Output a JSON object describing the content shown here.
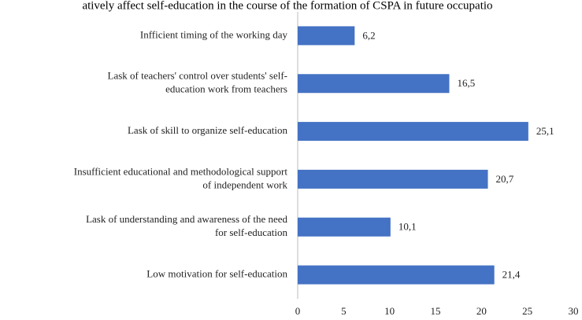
{
  "chart_data": {
    "type": "bar",
    "orientation": "horizontal",
    "title": "atively affect self-education in the course of the formation of CSPA in future occupatio",
    "categories": [
      [
        "Infficient timing of the working day"
      ],
      [
        "Lask of teachers' control over students' self-",
        "education work from teachers"
      ],
      [
        "Lask of skill to organize self-education"
      ],
      [
        "Insufficient educational and methodological support",
        "of independent work"
      ],
      [
        "Lask of understanding and awareness of the need",
        "for self-education"
      ],
      [
        "Low motivation for self-education"
      ]
    ],
    "values": [
      6.2,
      16.5,
      25.1,
      20.7,
      10.1,
      21.4
    ],
    "value_labels": [
      "6,2",
      "16,5",
      "25,1",
      "20,7",
      "10,1",
      "21,4"
    ],
    "color": "#4472c4",
    "xlim": [
      0,
      30
    ],
    "xticks": [
      0,
      5,
      10,
      15,
      20,
      25,
      30
    ],
    "grid": false
  }
}
